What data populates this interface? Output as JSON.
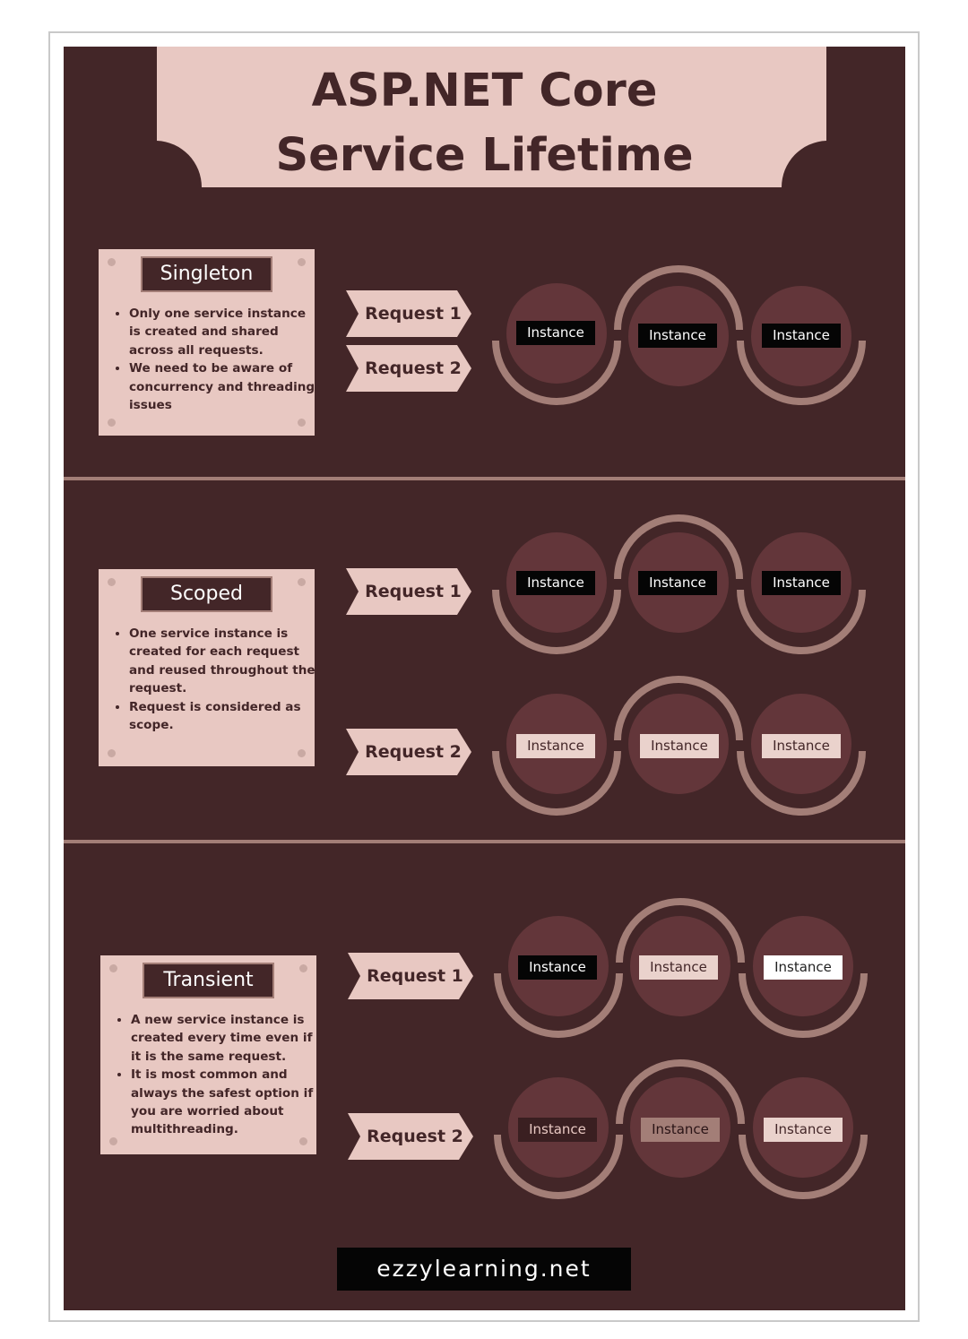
{
  "title": {
    "line1": "ASP.NET Core",
    "line2": "Service Lifetime"
  },
  "colors": {
    "background": "#432628",
    "panel": "#e8c8c2",
    "circle": "#63363a",
    "arc": "#a37e77",
    "instance_black": "#050505",
    "instance_light": "#ead2cc",
    "instance_white": "#ffffff",
    "instance_dark": "#3a1f21",
    "instance_mauve": "#a37e77"
  },
  "sections": [
    {
      "name": "Singleton",
      "bullets": [
        "Only one service instance is created and shared across all requests.",
        "We need to be aware of concurrency and threading issues"
      ],
      "requests": [
        "Request 1",
        "Request 2"
      ],
      "instances": [
        "Instance",
        "Instance",
        "Instance"
      ]
    },
    {
      "name": "Scoped",
      "bullets": [
        "One service instance is created for each request and reused throughout the request.",
        "Request is considered as scope."
      ],
      "requests": [
        "Request 1",
        "Request 2"
      ],
      "instances_request1": [
        "Instance",
        "Instance",
        "Instance"
      ],
      "instances_request2": [
        "Instance",
        "Instance",
        "Instance"
      ]
    },
    {
      "name": "Transient",
      "bullets": [
        "A new service instance is created every time even if it is the same request.",
        "It is most common and always the safest option if you are worried about multithreading."
      ],
      "requests": [
        "Request 1",
        "Request 2"
      ],
      "instances_request1": [
        "Instance",
        "Instance",
        "Instance"
      ],
      "instances_request2": [
        "Instance",
        "Instance",
        "Instance"
      ]
    }
  ],
  "footer": "ezzylearning.net"
}
